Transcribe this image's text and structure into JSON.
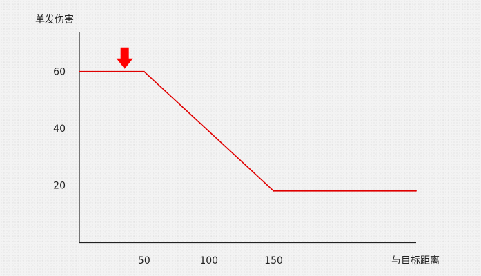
{
  "chart_data": {
    "type": "line",
    "ylabel": "单发伤害",
    "xlabel": "与目标距离",
    "x_ticks": [
      "50",
      "100",
      "150"
    ],
    "y_ticks": [
      "20",
      "40",
      "60"
    ],
    "xlim": [
      0,
      260
    ],
    "ylim": [
      0,
      74
    ],
    "grid": false,
    "series": [
      {
        "color": "#e00000",
        "x": [
          0,
          50,
          150,
          260
        ],
        "y": [
          60,
          60,
          18,
          18
        ]
      }
    ],
    "annotations": [
      {
        "kind": "arrow-down",
        "color": "#ff0000",
        "x": 35
      }
    ]
  }
}
